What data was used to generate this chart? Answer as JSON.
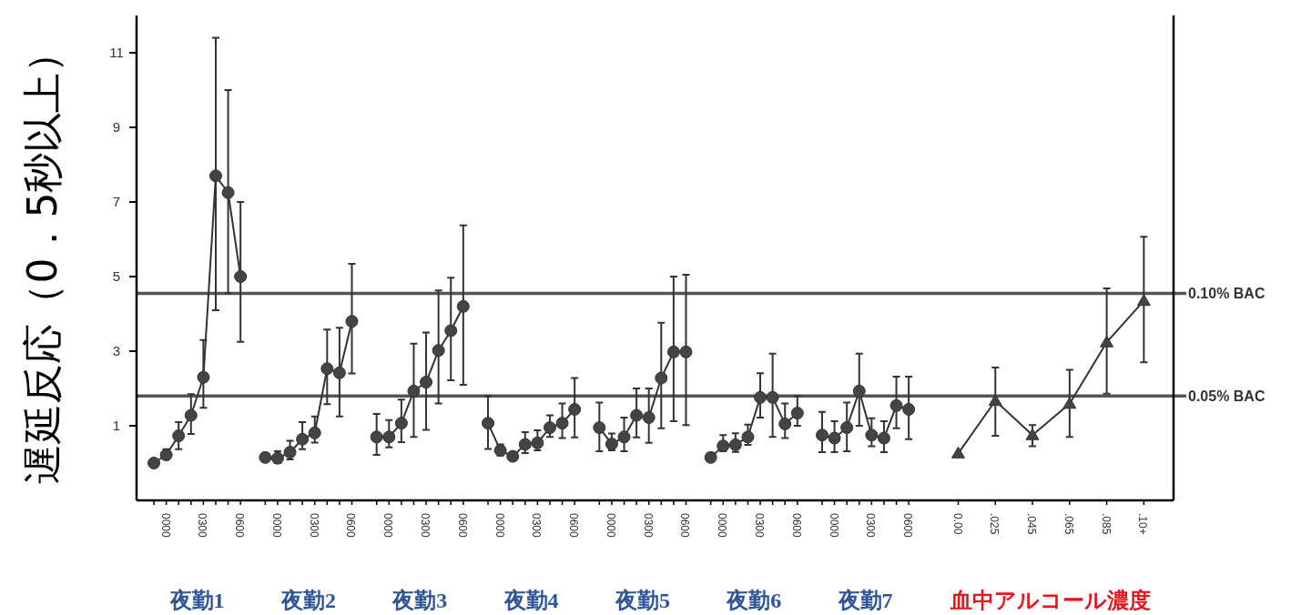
{
  "chart_data": {
    "type": "line",
    "ylabel": "遅延反応（0．5秒以上）",
    "categories": [
      null,
      "0000",
      null,
      null,
      "0300",
      null,
      null,
      "0600",
      null,
      null,
      "0000",
      null,
      null,
      "0300",
      null,
      null,
      "0600",
      null,
      null,
      "0000",
      null,
      null,
      "0300",
      null,
      null,
      "0600",
      null,
      null,
      "0000",
      null,
      null,
      "0300",
      null,
      null,
      "0600",
      null,
      null,
      "0000",
      null,
      null,
      "0300",
      null,
      null,
      "0600",
      null,
      null,
      "0000",
      null,
      null,
      "0300",
      null,
      null,
      "0600",
      null,
      null,
      "0000",
      null,
      null,
      "0300",
      null,
      null,
      "0600",
      null,
      null,
      null,
      "0.00",
      null,
      null,
      ".025",
      null,
      null,
      ".045",
      null,
      null,
      ".065",
      null,
      null,
      ".085",
      null,
      null,
      ".10+"
    ],
    "marker": "circle",
    "ylim": [
      -1,
      12
    ],
    "yticks": [
      1,
      3,
      5,
      7,
      9,
      11
    ],
    "series": [
      {
        "color": "#333333",
        "values": [
          0.0,
          0.22,
          0.73,
          1.28,
          2.3,
          7.7,
          7.25,
          5.0,
          null,
          0.15,
          0.13,
          0.29,
          0.64,
          0.81,
          2.53,
          2.42,
          3.8,
          null,
          0.7,
          0.7,
          1.07,
          1.93,
          2.17,
          3.02,
          3.55,
          4.2,
          null,
          1.07,
          0.34,
          0.18,
          0.5,
          0.54,
          0.95,
          1.07,
          1.44,
          null,
          0.95,
          0.51,
          0.7,
          1.28,
          1.22,
          2.28,
          2.98,
          2.98,
          null,
          0.15,
          0.46,
          0.49,
          0.7,
          1.76,
          1.76,
          1.05,
          1.34,
          null,
          0.75,
          0.67,
          0.95,
          1.93,
          0.75,
          0.67,
          1.54,
          1.44,
          null,
          null,
          null,
          null,
          null,
          null,
          null,
          null,
          null,
          null,
          null,
          null,
          null,
          null,
          null,
          null,
          null,
          null,
          null
        ],
        "errors": [
          null,
          [
            0.1,
            0.37
          ],
          [
            0.37,
            1.1
          ],
          [
            0.78,
            1.85
          ],
          [
            1.48,
            3.3
          ],
          [
            4.1,
            11.4
          ],
          [
            4.55,
            10.0
          ],
          [
            3.25,
            7.0
          ],
          null,
          null,
          [
            0.0,
            0.32
          ],
          [
            0.1,
            0.6
          ],
          [
            0.37,
            1.1
          ],
          [
            0.55,
            1.25
          ],
          [
            1.58,
            3.58
          ],
          [
            1.25,
            3.63
          ],
          [
            2.4,
            5.34
          ],
          null,
          [
            0.22,
            1.32
          ],
          [
            0.42,
            1.15
          ],
          [
            0.56,
            1.7
          ],
          [
            0.7,
            3.2
          ],
          [
            0.89,
            3.5
          ],
          [
            1.6,
            4.63
          ],
          [
            2.22,
            4.97
          ],
          [
            2.1,
            6.37
          ],
          null,
          [
            0.38,
            1.8
          ],
          [
            0.2,
            0.5
          ],
          null,
          [
            0.27,
            0.83
          ],
          [
            0.34,
            0.88
          ],
          [
            0.7,
            1.28
          ],
          [
            0.67,
            1.6
          ],
          [
            0.69,
            2.28
          ],
          null,
          [
            0.32,
            1.62
          ],
          [
            0.34,
            0.79
          ],
          [
            0.32,
            1.22
          ],
          [
            0.69,
            2.0
          ],
          [
            0.54,
            2.0
          ],
          [
            0.93,
            3.76
          ],
          [
            1.12,
            5.0
          ],
          [
            1.02,
            5.05
          ],
          null,
          null,
          [
            0.32,
            0.75
          ],
          [
            0.3,
            0.8
          ],
          [
            0.49,
            1.03
          ],
          [
            1.22,
            2.41
          ],
          [
            0.7,
            2.93
          ],
          [
            0.67,
            1.6
          ],
          [
            1.0,
            1.8
          ],
          null,
          [
            0.29,
            1.37
          ],
          [
            0.29,
            1.12
          ],
          [
            0.32,
            1.62
          ],
          [
            1.0,
            2.93
          ],
          [
            0.45,
            1.2
          ],
          [
            0.29,
            1.12
          ],
          [
            0.93,
            2.32
          ],
          [
            0.64,
            2.32
          ],
          null,
          null,
          null,
          null,
          null,
          null,
          null,
          null,
          null,
          null,
          null,
          null,
          null,
          null,
          null,
          null,
          null,
          null,
          null
        ]
      },
      {
        "color": "#333333",
        "marker": "triangle",
        "values": [
          null,
          null,
          null,
          null,
          null,
          null,
          null,
          null,
          null,
          null,
          null,
          null,
          null,
          null,
          null,
          null,
          null,
          null,
          null,
          null,
          null,
          null,
          null,
          null,
          null,
          null,
          null,
          null,
          null,
          null,
          null,
          null,
          null,
          null,
          null,
          null,
          null,
          null,
          null,
          null,
          null,
          null,
          null,
          null,
          null,
          null,
          null,
          null,
          null,
          null,
          null,
          null,
          null,
          null,
          null,
          null,
          null,
          null,
          null,
          null,
          null,
          null,
          null,
          null,
          null,
          0.26,
          null,
          null,
          1.67,
          null,
          null,
          0.75,
          null,
          null,
          1.59,
          null,
          null,
          3.24,
          null,
          null,
          4.35
        ],
        "errors": [
          null,
          null,
          null,
          null,
          null,
          null,
          null,
          null,
          null,
          null,
          null,
          null,
          null,
          null,
          null,
          null,
          null,
          null,
          null,
          null,
          null,
          null,
          null,
          null,
          null,
          null,
          null,
          null,
          null,
          null,
          null,
          null,
          null,
          null,
          null,
          null,
          null,
          null,
          null,
          null,
          null,
          null,
          null,
          null,
          null,
          null,
          null,
          null,
          null,
          null,
          null,
          null,
          null,
          null,
          null,
          null,
          null,
          null,
          null,
          null,
          null,
          null,
          null,
          null,
          null,
          null,
          null,
          null,
          [
            0.73,
            2.56
          ],
          null,
          null,
          [
            0.45,
            1.02
          ],
          null,
          null,
          [
            0.7,
            2.5
          ],
          null,
          null,
          [
            1.86,
            4.68
          ],
          null,
          null,
          [
            2.7,
            6.07
          ]
        ]
      }
    ],
    "ref_lines": [
      {
        "axis": "y",
        "value": 4.55,
        "label": "0.10% BAC"
      },
      {
        "axis": "y",
        "value": 1.8,
        "label": "0.05% BAC"
      }
    ],
    "annotations": [
      "夜勤1",
      "夜勤2",
      "夜勤3",
      "夜勤4",
      "夜勤5",
      "夜勤6",
      "夜勤7",
      "血中アルコール濃度"
    ]
  }
}
